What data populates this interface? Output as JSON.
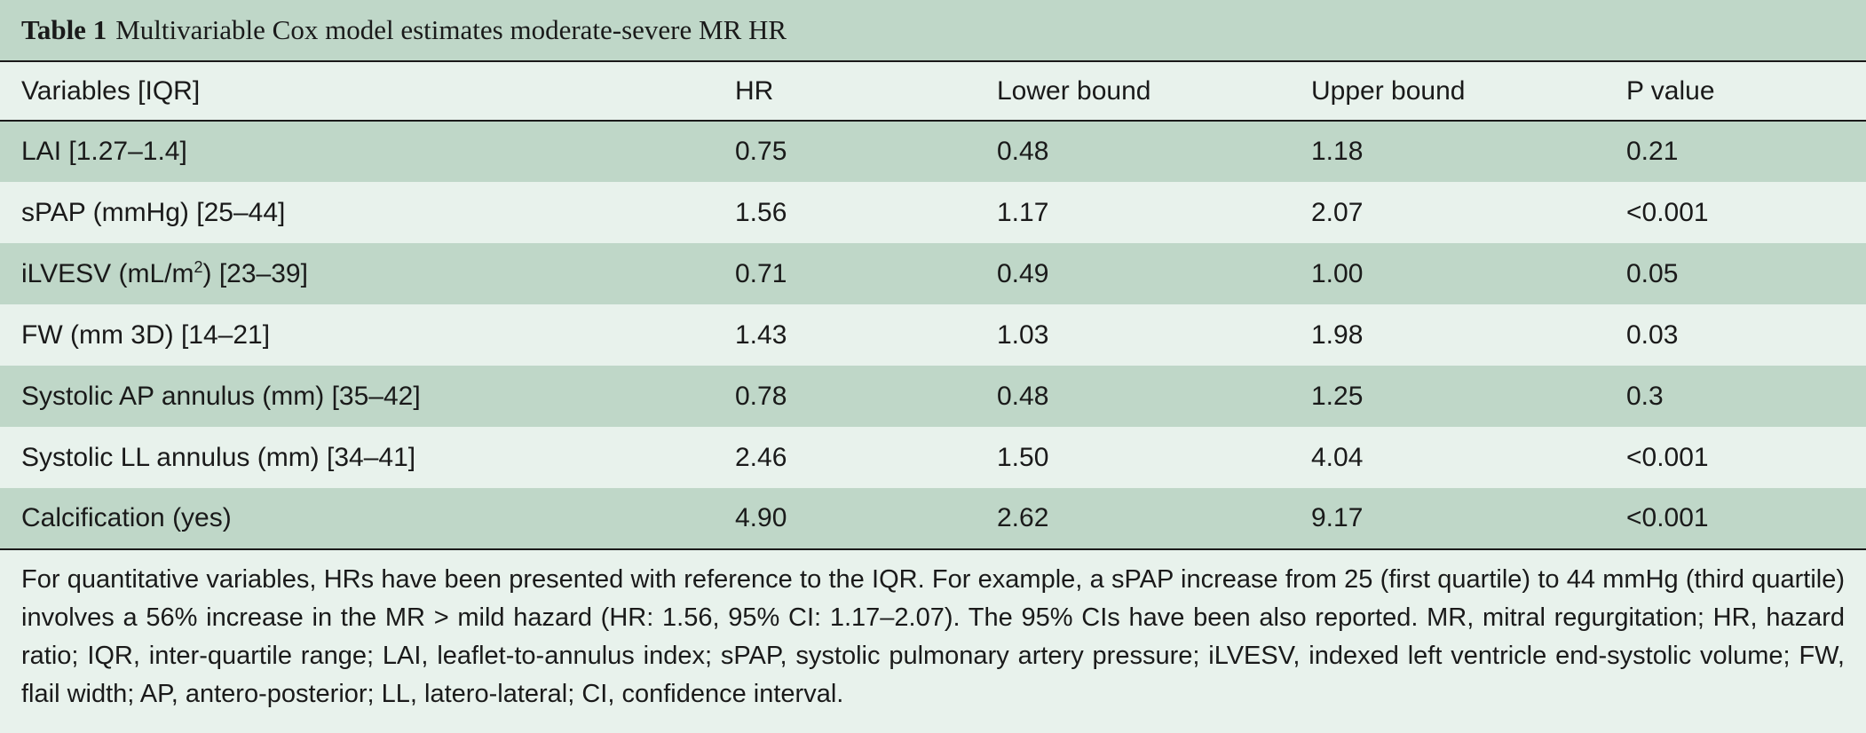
{
  "table": {
    "number": "Table 1",
    "title": "Multivariable Cox model estimates moderate-severe MR HR",
    "headers": [
      "Variables [IQR]",
      "HR",
      "Lower bound",
      "Upper bound",
      "P value"
    ],
    "rows": [
      {
        "variable": "LAI [1.27–1.4]",
        "hr": "0.75",
        "lower": "0.48",
        "upper": "1.18",
        "p": "0.21"
      },
      {
        "variable": "sPAP (mmHg) [25–44]",
        "hr": "1.56",
        "lower": "1.17",
        "upper": "2.07",
        "p": "<0.001"
      },
      {
        "variable_pre": "iLVESV (mL/m",
        "variable_sup": "2",
        "variable_post": ") [23–39]",
        "hr": "0.71",
        "lower": "0.49",
        "upper": "1.00",
        "p": "0.05"
      },
      {
        "variable": "FW (mm 3D) [14–21]",
        "hr": "1.43",
        "lower": "1.03",
        "upper": "1.98",
        "p": "0.03"
      },
      {
        "variable": "Systolic AP annulus (mm) [35–42]",
        "hr": "0.78",
        "lower": "0.48",
        "upper": "1.25",
        "p": "0.3"
      },
      {
        "variable": "Systolic LL annulus (mm) [34–41]",
        "hr": "2.46",
        "lower": "1.50",
        "upper": "4.04",
        "p": "<0.001"
      },
      {
        "variable": "Calcification (yes)",
        "hr": "4.90",
        "lower": "2.62",
        "upper": "9.17",
        "p": "<0.001"
      }
    ],
    "footnote": "For quantitative variables, HRs have been presented with reference to the IQR. For example, a sPAP increase from 25 (first quartile) to 44 mmHg (third quartile) involves a 56% increase in the MR > mild hazard (HR: 1.56, 95% CI: 1.17–2.07). The 95% CIs have been also reported. MR, mitral regurgitation; HR, hazard ratio; IQR, inter-quartile range; LAI, leaflet-to-annulus index; sPAP, systolic pulmonary artery pressure; iLVESV, indexed left ventricle end-systolic volume; FW, flail width; AP, antero-posterior; LL, latero-lateral; CI, confidence interval."
  }
}
